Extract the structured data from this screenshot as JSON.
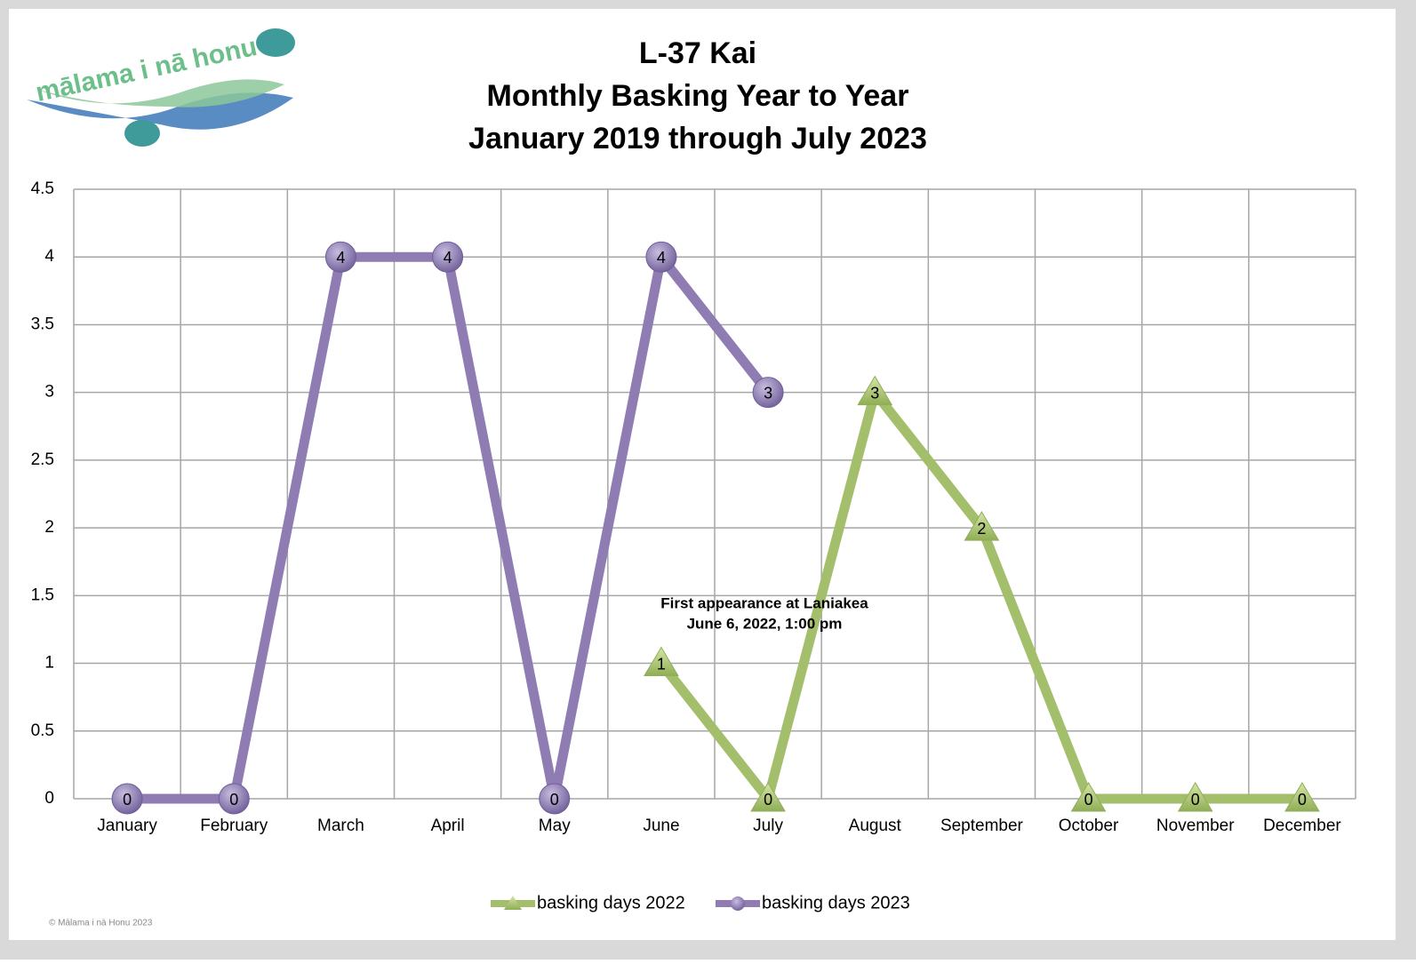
{
  "logo_text": "mālama i nā honu",
  "footer": "© Mālama i nā Honu 2023",
  "chart_data": {
    "type": "line",
    "title": [
      "L-37 Kai",
      "Monthly Basking Year to Year",
      "January 2019 through July 2023"
    ],
    "annotation": [
      "First appearance at Laniakea",
      "June 6, 2022, 1:00 pm"
    ],
    "categories": [
      "January",
      "February",
      "March",
      "April",
      "May",
      "June",
      "July",
      "August",
      "September",
      "October",
      "November",
      "December"
    ],
    "series": [
      {
        "name": "basking days 2022",
        "color": "#a4bf6c",
        "marker": "triangle",
        "values": [
          null,
          null,
          null,
          null,
          null,
          1,
          0,
          3,
          2,
          0,
          0,
          0
        ]
      },
      {
        "name": "basking days 2023",
        "color": "#8e7cb3",
        "marker": "circle",
        "values": [
          0,
          0,
          4,
          4,
          0,
          4,
          3,
          null,
          null,
          null,
          null,
          null
        ]
      }
    ],
    "ylim": [
      0,
      4.5
    ],
    "yticks": [
      0,
      0.5,
      1,
      1.5,
      2,
      2.5,
      3,
      3.5,
      4,
      4.5
    ],
    "grid": true,
    "legend": "bottom"
  }
}
